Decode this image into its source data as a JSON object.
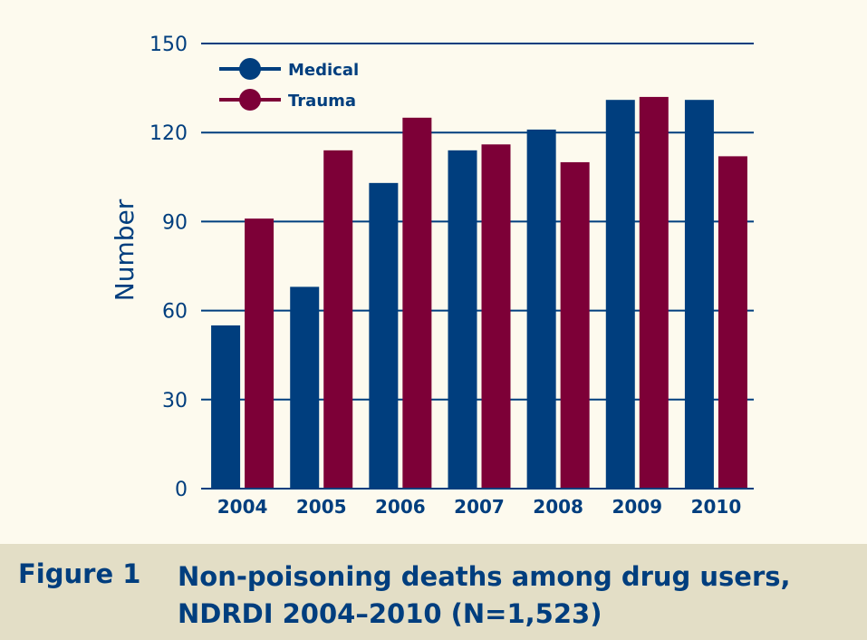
{
  "colors": {
    "medical": "#003e7e",
    "trauma": "#7d0037",
    "text": "#003e7e",
    "grid": "#003e7e",
    "background": "#fdfaee",
    "caption_background": "#e3dec6"
  },
  "caption": {
    "label": "Figure 1",
    "text": "Non-poisoning deaths among drug users, NDRDI 2004–2010 (N=1,523)"
  },
  "chart_data": {
    "type": "bar",
    "categories": [
      "2004",
      "2005",
      "2006",
      "2007",
      "2008",
      "2009",
      "2010"
    ],
    "series": [
      {
        "name": "Medical",
        "values": [
          55,
          68,
          103,
          114,
          121,
          131,
          131
        ]
      },
      {
        "name": "Trauma",
        "values": [
          91,
          114,
          125,
          116,
          110,
          132,
          112
        ]
      }
    ],
    "xlabel": "",
    "ylabel": "Number",
    "ylim": [
      0,
      150
    ],
    "yticks": [
      0,
      30,
      60,
      90,
      120,
      150
    ],
    "grid": true,
    "legend_position": "top-left"
  }
}
